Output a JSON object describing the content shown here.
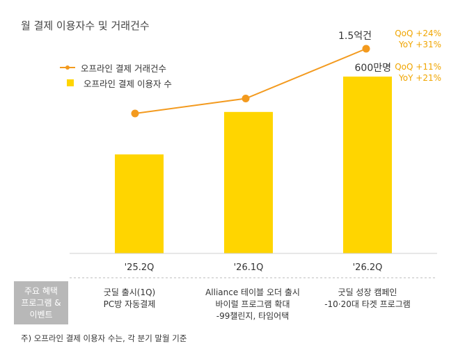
{
  "title": "월 결제 이용자수 및 거래건수",
  "legend": {
    "line": "오프라인 결제 거래건수",
    "bar": "오프라인 결제 이용자 수"
  },
  "colors": {
    "bar": "#ffd500",
    "line": "#f39a1e",
    "annotation": "#f0a500",
    "program_cell": "#b8b8b8"
  },
  "chart_data": {
    "type": "bar",
    "categories": [
      "'25.2Q",
      "'26.1Q",
      "'26.2Q"
    ],
    "series": [
      {
        "name": "오프라인 결제 이용자 수",
        "type": "bar",
        "values": [
          null,
          null,
          600
        ],
        "labels": [
          "",
          "",
          "600만명"
        ]
      },
      {
        "name": "오프라인 결제 거래건수",
        "type": "line",
        "values": [
          null,
          null,
          1.5
        ],
        "labels": [
          "",
          "",
          "1.5억건"
        ]
      }
    ],
    "bar_ratios": [
      0.56,
      0.8,
      1.0
    ],
    "line_ratios": [
      0.74,
      0.8,
      1.0
    ],
    "annotations": {
      "line": [
        "QoQ +24%",
        "YoY +31%"
      ],
      "bar": [
        "QoQ +11%",
        "YoY +21%"
      ]
    }
  },
  "program": {
    "header": [
      "주요 혜택",
      "프로그램 &",
      "이벤트"
    ],
    "events": [
      [
        "굿딜 출시(1Q)",
        "PC방 자동결제"
      ],
      [
        "Alliance 테이블 오더 출시",
        "바이럴 프로그램 확대",
        "-99챌린지, 타임어택"
      ],
      [
        "굿딜 성장 캠페인",
        "-10·20대 타겟 프로그램"
      ]
    ]
  },
  "footnote": "주) 오프라인 결제 이용자 수는, 각 분기 말월 기준"
}
